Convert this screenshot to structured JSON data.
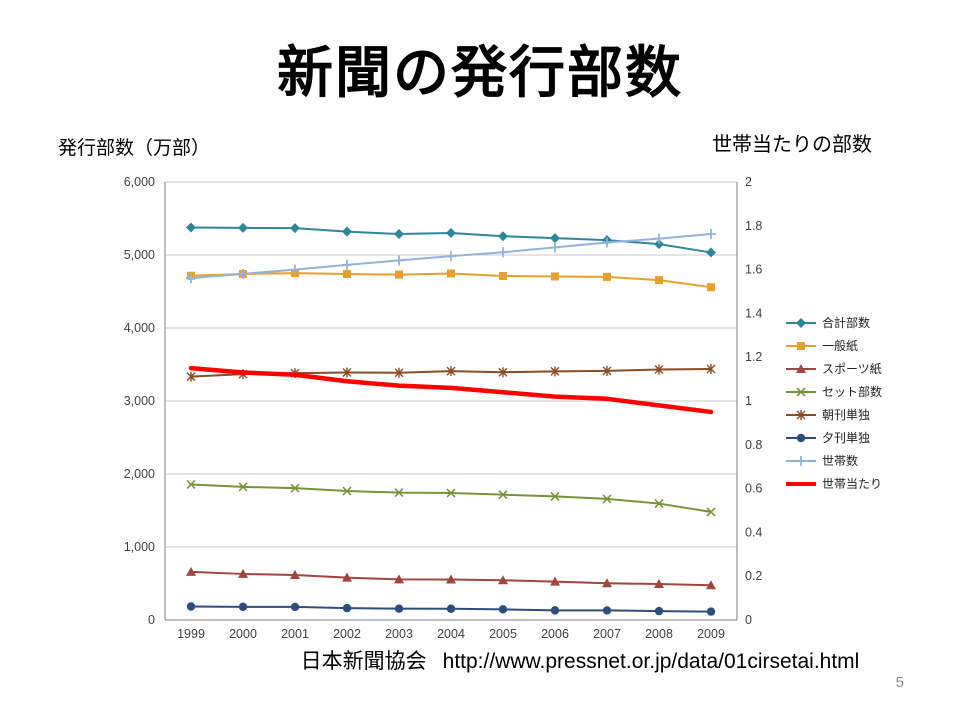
{
  "slide": {
    "title": "新聞の発行部数",
    "left_axis_label": "発行部数（万部）",
    "right_axis_label": "世帯当たりの部数",
    "source_org": "日本新聞協会",
    "source_url": "http://www.pressnet.or.jp/data/01cirsetai.html",
    "page_number": "5"
  },
  "chart_data": {
    "type": "line",
    "x_categories": [
      "1999",
      "2000",
      "2001",
      "2002",
      "2003",
      "2004",
      "2005",
      "2006",
      "2007",
      "2008",
      "2009"
    ],
    "left_axis": {
      "min": 0,
      "max": 6000,
      "tick_values": [
        0,
        1000,
        2000,
        3000,
        4000,
        5000,
        6000
      ],
      "tick_labels": [
        "0",
        "1,000",
        "2,000",
        "3,000",
        "4,000",
        "5,000",
        "6,000"
      ]
    },
    "right_axis": {
      "min": 0,
      "max": 2,
      "tick_values": [
        0,
        0.2,
        0.4,
        0.6,
        0.8,
        1,
        1.2,
        1.4,
        1.6,
        1.8,
        2
      ],
      "tick_labels": [
        "0",
        "0.2",
        "0.4",
        "0.6",
        "0.8",
        "1",
        "1.2",
        "1.4",
        "1.6",
        "1.8",
        "2"
      ]
    },
    "grid": "horizontal",
    "legend_position": "right",
    "series": [
      {
        "name": "合計部数",
        "axis": "left",
        "color": "#31859B",
        "marker": "diamond",
        "line_width": 2,
        "values": [
          5376,
          5371,
          5368,
          5320,
          5287,
          5302,
          5257,
          5231,
          5203,
          5149,
          5035
        ]
      },
      {
        "name": "一般紙",
        "axis": "left",
        "color": "#E5A02D",
        "marker": "square",
        "line_width": 2,
        "values": [
          4716,
          4740,
          4752,
          4739,
          4731,
          4747,
          4713,
          4706,
          4700,
          4656,
          4559
        ]
      },
      {
        "name": "スポーツ紙",
        "axis": "left",
        "color": "#A04540",
        "marker": "triangle",
        "line_width": 2,
        "values": [
          660,
          631,
          616,
          581,
          556,
          555,
          544,
          525,
          503,
          493,
          476
        ]
      },
      {
        "name": "セット部数",
        "axis": "left",
        "color": "#77933C",
        "marker": "x",
        "line_width": 2,
        "values": [
          1857,
          1823,
          1806,
          1767,
          1745,
          1739,
          1717,
          1693,
          1659,
          1595,
          1481
        ]
      },
      {
        "name": "朝刊単独",
        "axis": "left",
        "color": "#8A4B25",
        "marker": "star",
        "line_width": 2,
        "values": [
          3334,
          3368,
          3382,
          3390,
          3387,
          3409,
          3394,
          3406,
          3412,
          3432,
          3439
        ]
      },
      {
        "name": "夕刊単独",
        "axis": "left",
        "color": "#2E4D7B",
        "marker": "circle",
        "line_width": 2,
        "values": [
          185,
          180,
          179,
          163,
          155,
          154,
          146,
          132,
          131,
          122,
          115
        ]
      },
      {
        "name": "世帯数",
        "axis": "left",
        "color": "#95B3D7",
        "marker": "plus",
        "line_width": 2,
        "values": [
          4684,
          4742,
          4800,
          4864,
          4926,
          4984,
          5038,
          5104,
          5171,
          5225,
          5288
        ]
      },
      {
        "name": "世帯当たり",
        "axis": "right",
        "color": "#FF0000",
        "marker": "none",
        "line_width": 4.5,
        "values": [
          1.15,
          1.13,
          1.12,
          1.09,
          1.07,
          1.06,
          1.04,
          1.02,
          1.01,
          0.98,
          0.95
        ]
      }
    ]
  }
}
